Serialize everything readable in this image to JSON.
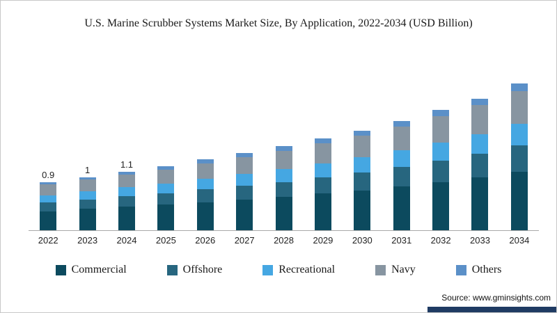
{
  "header": {
    "title": "U.S. Marine Scrubber Systems Market Size, By Application, 2022-2034 (USD Billion)"
  },
  "footer": {
    "source_label": "Source: www.gminsights.com",
    "accent_color": "#1f3b63"
  },
  "chart_data": {
    "type": "bar",
    "stacked": true,
    "title": "U.S. Marine Scrubber Systems Market Size, By Application, 2022-2034 (USD Billion)",
    "xlabel": "",
    "ylabel": "",
    "legend_position": "bottom",
    "grid": false,
    "categories": [
      "2022",
      "2023",
      "2024",
      "2025",
      "2026",
      "2027",
      "2028",
      "2029",
      "2030",
      "2031",
      "2032",
      "2033",
      "2034"
    ],
    "data_labels": [
      "0.9",
      "1",
      "1.1",
      "",
      "",
      "",
      "",
      "",
      "",
      "",
      "",
      "",
      ""
    ],
    "totals": [
      0.9,
      1.0,
      1.1,
      1.2,
      1.32,
      1.45,
      1.58,
      1.72,
      1.88,
      2.05,
      2.25,
      2.48,
      2.75
    ],
    "series": [
      {
        "name": "Commercial",
        "color": "#0c4a5e",
        "values": [
          0.36,
          0.4,
          0.44,
          0.48,
          0.53,
          0.58,
          0.63,
          0.69,
          0.75,
          0.82,
          0.9,
          0.99,
          1.1
        ]
      },
      {
        "name": "Offshore",
        "color": "#27667f",
        "values": [
          0.16,
          0.18,
          0.2,
          0.22,
          0.24,
          0.26,
          0.28,
          0.31,
          0.34,
          0.37,
          0.41,
          0.45,
          0.5
        ]
      },
      {
        "name": "Recreational",
        "color": "#45a7e2",
        "values": [
          0.14,
          0.15,
          0.17,
          0.18,
          0.2,
          0.22,
          0.24,
          0.26,
          0.28,
          0.31,
          0.34,
          0.37,
          0.41
        ]
      },
      {
        "name": "Navy",
        "color": "#8795a1",
        "values": [
          0.2,
          0.22,
          0.24,
          0.26,
          0.29,
          0.32,
          0.35,
          0.38,
          0.41,
          0.45,
          0.5,
          0.55,
          0.61
        ]
      },
      {
        "name": "Others",
        "color": "#5b90c8",
        "values": [
          0.05,
          0.05,
          0.05,
          0.06,
          0.07,
          0.07,
          0.08,
          0.09,
          0.09,
          0.1,
          0.11,
          0.12,
          0.14
        ]
      }
    ]
  }
}
